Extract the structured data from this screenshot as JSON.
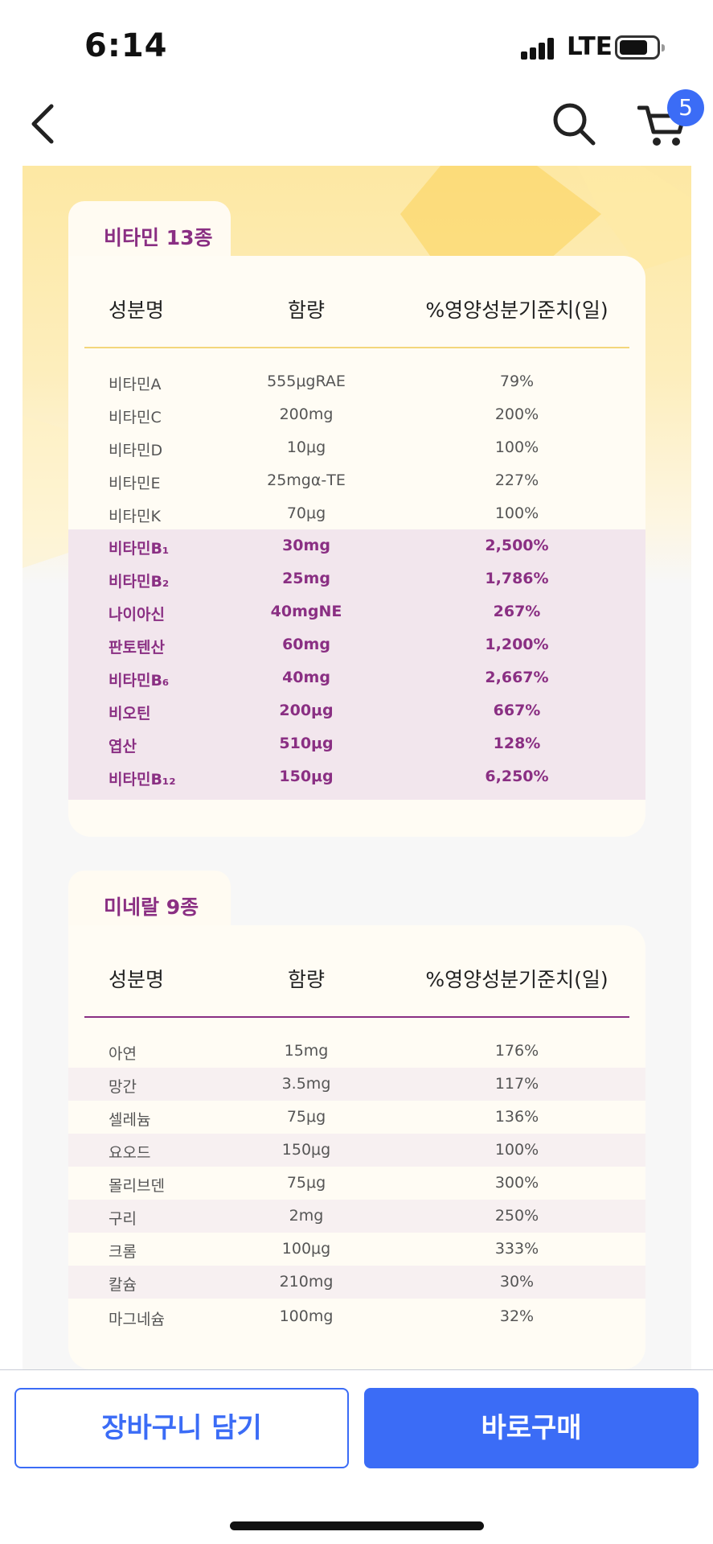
{
  "status_bar": {
    "time": "6:14",
    "network": "LTE"
  },
  "nav": {
    "cart_count": "5"
  },
  "vitamins": {
    "tab_label": "비타민 13종",
    "headers": [
      "성분명",
      "함량",
      "%영양성분기준치(일)"
    ],
    "rows": [
      [
        "비타민A",
        "555μgRAE",
        "79%"
      ],
      [
        "비타민C",
        "200mg",
        "200%"
      ],
      [
        "비타민D",
        "10μg",
        "100%"
      ],
      [
        "비타민E",
        "25mgα-TE",
        "227%"
      ],
      [
        "비타민K",
        "70μg",
        "100%"
      ],
      [
        "비타민B₁",
        "30mg",
        "2,500%"
      ],
      [
        "비타민B₂",
        "25mg",
        "1,786%"
      ],
      [
        "나이아신",
        "40mgNE",
        "267%"
      ],
      [
        "판토텐산",
        "60mg",
        "1,200%"
      ],
      [
        "비타민B₆",
        "40mg",
        "2,667%"
      ],
      [
        "비오틴",
        "200μg",
        "667%"
      ],
      [
        "엽산",
        "510μg",
        "128%"
      ],
      [
        "비타민B₁₂",
        "150μg",
        "6,250%"
      ]
    ]
  },
  "minerals": {
    "tab_label": "미네랄 9종",
    "headers": [
      "성분명",
      "함량",
      "%영양성분기준치(일)"
    ],
    "rows": [
      [
        "아연",
        "15mg",
        "176%"
      ],
      [
        "망간",
        "3.5mg",
        "117%"
      ],
      [
        "셀레늄",
        "75μg",
        "136%"
      ],
      [
        "요오드",
        "150μg",
        "100%"
      ],
      [
        "몰리브덴",
        "75μg",
        "300%"
      ],
      [
        "구리",
        "2mg",
        "250%"
      ],
      [
        "크롬",
        "100μg",
        "333%"
      ],
      [
        "칼슘",
        "210mg",
        "30%"
      ],
      [
        "마그네슘",
        "100mg",
        "32%"
      ]
    ]
  },
  "buttons": {
    "cart": "장바구니 담기",
    "buy": "바로구매"
  },
  "colors": {
    "accent": "#3b6cf6",
    "purple": "#8a2f83",
    "highlight_bg": "#f2e6ed",
    "gold_rule": "#f3d77b"
  }
}
